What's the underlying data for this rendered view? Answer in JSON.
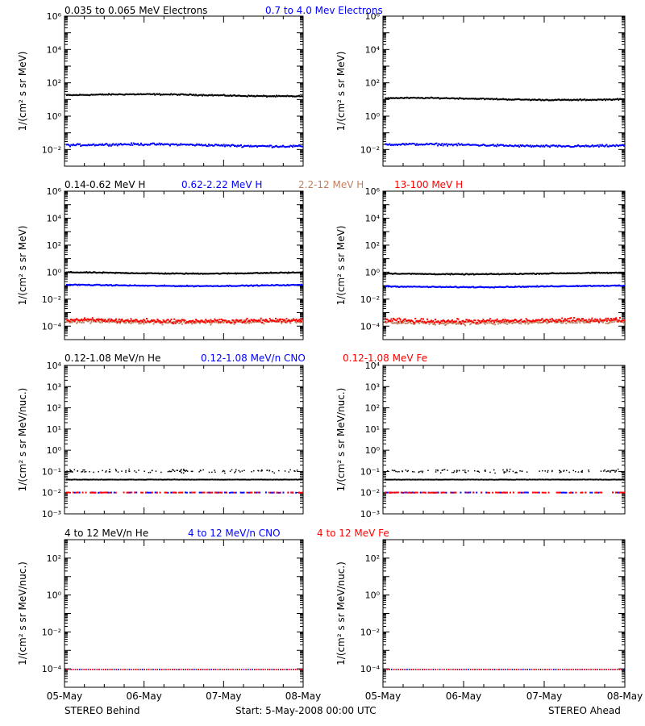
{
  "colors": {
    "black": "#000000",
    "blue": "#0000ff",
    "tan": "#c08060",
    "red": "#ff0000"
  },
  "rows": [
    {
      "id": "electrons",
      "headers": [
        {
          "text": "0.035 to 0.065 MeV Electrons",
          "color": "#000000"
        },
        {
          "text": "0.7 to 4.0 Mev Electrons",
          "color": "#0000ff"
        }
      ],
      "ylabel": "1/(cm² s sr MeV)"
    },
    {
      "id": "protons",
      "headers": [
        {
          "text": "0.14-0.62 MeV H",
          "color": "#000000"
        },
        {
          "text": "0.62-2.22 MeV H",
          "color": "#0000ff"
        },
        {
          "text": "2.2-12 MeV H",
          "color": "#c08060"
        },
        {
          "text": "13-100 MeV H",
          "color": "#ff0000"
        }
      ],
      "ylabel": "1/(cm² s sr MeV)"
    },
    {
      "id": "heavy-low",
      "headers": [
        {
          "text": "0.12-1.08 MeV/n He",
          "color": "#000000"
        },
        {
          "text": "0.12-1.08 MeV/n CNO",
          "color": "#0000ff"
        },
        {
          "text": "0.12-1.08 MeV Fe",
          "color": "#ff0000"
        }
      ],
      "ylabel": "1/(cm² s sr MeV/nuc.)"
    },
    {
      "id": "heavy-high",
      "headers": [
        {
          "text": "4 to 12 MeV/n He",
          "color": "#000000"
        },
        {
          "text": "4 to 12 MeV/n CNO",
          "color": "#0000ff"
        },
        {
          "text": "4 to 12 MeV Fe",
          "color": "#ff0000"
        }
      ],
      "ylabel": "1/(cm² s sr MeV/nuc.)"
    }
  ],
  "x_ticks": [
    "05-May",
    "06-May",
    "07-May",
    "08-May"
  ],
  "footer": {
    "left": "STEREO Behind",
    "center": "Start:  5-May-2008 00:00 UTC",
    "right": "STEREO Ahead"
  },
  "chart_data": [
    {
      "type": "scatter",
      "panel": "behind-electrons",
      "spacecraft": "STEREO Behind",
      "yscale": "log",
      "ylim": [
        0.001,
        1000000
      ],
      "ytick_labels": [
        "10^-2",
        "10^0",
        "10^2",
        "10^4",
        "10^6"
      ],
      "xlim": [
        "2008-05-05",
        "2008-05-08"
      ],
      "series": [
        {
          "name": "0.035 to 0.065 MeV Electrons",
          "color": "#000000",
          "level": 20
        },
        {
          "name": "0.7 to 4.0 Mev Electrons",
          "color": "#0000ff",
          "level": 0.02
        }
      ]
    },
    {
      "type": "scatter",
      "panel": "ahead-electrons",
      "spacecraft": "STEREO Ahead",
      "yscale": "log",
      "ylim": [
        0.001,
        1000000
      ],
      "ytick_labels": [
        "10^-2",
        "10^0",
        "10^2",
        "10^4",
        "10^6"
      ],
      "xlim": [
        "2008-05-05",
        "2008-05-08"
      ],
      "series": [
        {
          "name": "0.035 to 0.065 MeV Electrons",
          "color": "#000000",
          "level": 12
        },
        {
          "name": "0.7 to 4.0 Mev Electrons",
          "color": "#0000ff",
          "level": 0.02
        }
      ]
    },
    {
      "type": "scatter",
      "panel": "behind-protons",
      "spacecraft": "STEREO Behind",
      "yscale": "log",
      "ylim": [
        1e-05,
        1000000
      ],
      "ytick_labels": [
        "10^-4",
        "10^-2",
        "10^0",
        "10^2",
        "10^4",
        "10^6"
      ],
      "xlim": [
        "2008-05-05",
        "2008-05-08"
      ],
      "series": [
        {
          "name": "0.14-0.62 MeV H",
          "color": "#000000",
          "level": 1.0
        },
        {
          "name": "0.62-2.22 MeV H",
          "color": "#0000ff",
          "level": 0.12
        },
        {
          "name": "2.2-12 MeV H",
          "color": "#c08060",
          "level": 0.00025
        },
        {
          "name": "13-100 MeV H",
          "color": "#ff0000",
          "level": 0.0003
        }
      ]
    },
    {
      "type": "scatter",
      "panel": "ahead-protons",
      "spacecraft": "STEREO Ahead",
      "yscale": "log",
      "ylim": [
        1e-05,
        1000000
      ],
      "ytick_labels": [
        "10^-4",
        "10^-2",
        "10^0",
        "10^2",
        "10^4",
        "10^6"
      ],
      "xlim": [
        "2008-05-05",
        "2008-05-08"
      ],
      "series": [
        {
          "name": "0.14-0.62 MeV H",
          "color": "#000000",
          "level": 0.9
        },
        {
          "name": "0.62-2.22 MeV H",
          "color": "#0000ff",
          "level": 0.1
        },
        {
          "name": "2.2-12 MeV H",
          "color": "#c08060",
          "level": 0.00022
        },
        {
          "name": "13-100 MeV H",
          "color": "#ff0000",
          "level": 0.0003
        }
      ]
    },
    {
      "type": "scatter",
      "panel": "behind-heavy-low",
      "spacecraft": "STEREO Behind",
      "yscale": "log",
      "ylim": [
        0.001,
        10000
      ],
      "ytick_labels": [
        "10^-3",
        "10^-2",
        "10^-1",
        "10^0",
        "10^1",
        "10^2",
        "10^3",
        "10^4"
      ],
      "xlim": [
        "2008-05-05",
        "2008-05-08"
      ],
      "series": [
        {
          "name": "0.12-1.08 MeV/n He",
          "color": "#000000",
          "level": 0.045
        },
        {
          "name": "0.12-1.08 MeV/n CNO",
          "color": "#0000ff",
          "level": 0.011
        },
        {
          "name": "0.12-1.08 MeV Fe",
          "color": "#ff0000",
          "level": 0.011
        }
      ]
    },
    {
      "type": "scatter",
      "panel": "ahead-heavy-low",
      "spacecraft": "STEREO Ahead",
      "yscale": "log",
      "ylim": [
        0.001,
        10000
      ],
      "ytick_labels": [
        "10^-3",
        "10^-2",
        "10^-1",
        "10^0",
        "10^1",
        "10^2",
        "10^3",
        "10^4"
      ],
      "xlim": [
        "2008-05-05",
        "2008-05-08"
      ],
      "series": [
        {
          "name": "0.12-1.08 MeV/n He",
          "color": "#000000",
          "level": 0.045
        },
        {
          "name": "0.12-1.08 MeV/n CNO",
          "color": "#0000ff",
          "level": 0.011
        },
        {
          "name": "0.12-1.08 MeV Fe",
          "color": "#ff0000",
          "level": 0.011
        }
      ]
    },
    {
      "type": "scatter",
      "panel": "behind-heavy-high",
      "spacecraft": "STEREO Behind",
      "yscale": "log",
      "ylim": [
        1e-05,
        1000
      ],
      "ytick_labels": [
        "10^-4",
        "10^-2",
        "10^0",
        "10^2"
      ],
      "xlim": [
        "2008-05-05",
        "2008-05-08"
      ],
      "series": [
        {
          "name": "4 to 12 MeV/n He",
          "color": "#000000",
          "level": 0.0001
        },
        {
          "name": "4 to 12 MeV/n CNO",
          "color": "#0000ff",
          "level": 0.0001
        },
        {
          "name": "4 to 12 MeV Fe",
          "color": "#ff0000",
          "level": 0.0001
        }
      ]
    },
    {
      "type": "scatter",
      "panel": "ahead-heavy-high",
      "spacecraft": "STEREO Ahead",
      "yscale": "log",
      "ylim": [
        1e-05,
        1000
      ],
      "ytick_labels": [
        "10^-4",
        "10^-2",
        "10^0",
        "10^2"
      ],
      "xlim": [
        "2008-05-05",
        "2008-05-08"
      ],
      "series": [
        {
          "name": "4 to 12 MeV/n He",
          "color": "#000000",
          "level": 0.0001
        },
        {
          "name": "4 to 12 MeV/n CNO",
          "color": "#0000ff",
          "level": 0.0001
        },
        {
          "name": "4 to 12 MeV Fe",
          "color": "#ff0000",
          "level": 0.0001
        }
      ]
    }
  ]
}
